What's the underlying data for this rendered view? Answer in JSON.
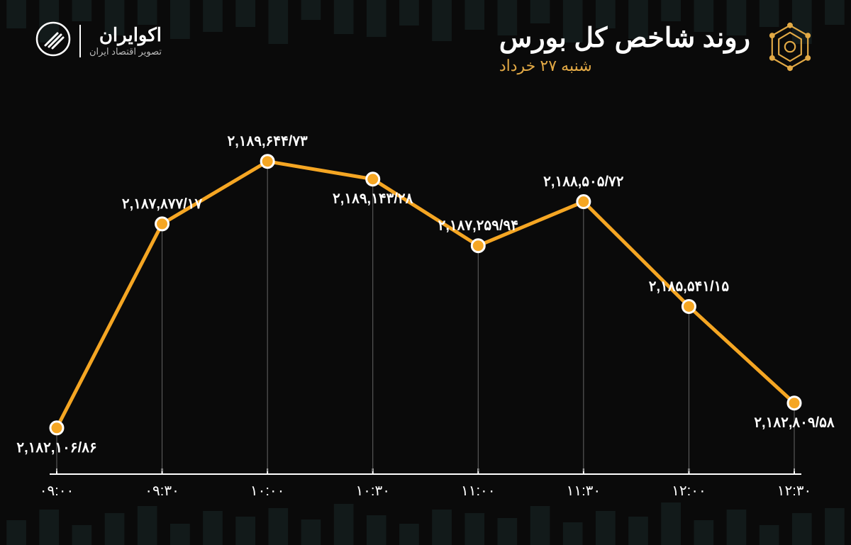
{
  "header": {
    "title": "روند شاخص کل بورس",
    "subtitle": "شنبه ۲۷ خرداد",
    "brand_main": "اکوایران",
    "brand_sub": "تصویر اقتصاد ایران"
  },
  "chart": {
    "type": "line",
    "background_color": "#0a0a0a",
    "line_color": "#f5a623",
    "line_width": 5,
    "marker_fill": "#f5a623",
    "marker_stroke": "#ffffff",
    "marker_radius": 9,
    "marker_stroke_width": 3,
    "axis_color": "#ffffff",
    "grid_tick_color": "#ffffff",
    "label_color": "#ffffff",
    "label_fontsize": 20,
    "data_label_fontsize": 20,
    "ylim": [
      2181000,
      2190000
    ],
    "x_labels": [
      "۰۹:۰۰",
      "۰۹:۳۰",
      "۱۰:۰۰",
      "۱۰:۳۰",
      "۱۱:۰۰",
      "۱۱:۳۰",
      "۱۲:۰۰",
      "۱۲:۳۰"
    ],
    "values": [
      2182106.86,
      2187877.17,
      2189644.73,
      2189143.28,
      2187259.94,
      2188505.72,
      2185541.15,
      2182809.58
    ],
    "value_labels": [
      "۲,۱۸۲,۱۰۶/۸۶",
      "۲,۱۸۷,۸۷۷/۱۷",
      "۲,۱۸۹,۶۴۴/۷۳",
      "۲,۱۸۹,۱۴۳/۲۸",
      "۲,۱۸۷,۲۵۹/۹۴",
      "۲,۱۸۸,۵۰۵/۷۲",
      "۲,۱۸۵,۵۴۱/۱۵",
      "۲,۱۸۲,۸۰۹/۵۸"
    ],
    "label_positions": [
      "below",
      "above",
      "above",
      "below",
      "above",
      "above",
      "above",
      "below"
    ],
    "bg_bars_top": {
      "color": "#1a2a2a",
      "heights": [
        40,
        60,
        30,
        50,
        35,
        55,
        45,
        38,
        62,
        28,
        48,
        52,
        36,
        58,
        42,
        50,
        33,
        60,
        40,
        55,
        30,
        45,
        50,
        38,
        62,
        35
      ]
    },
    "bg_bars_bottom": {
      "color": "#1a2a2a",
      "heights": [
        35,
        50,
        28,
        45,
        55,
        30,
        48,
        40,
        52,
        36,
        58,
        42,
        30,
        50,
        45,
        38,
        55,
        32,
        48,
        40,
        60,
        35,
        50,
        28,
        45,
        52
      ]
    }
  },
  "colors": {
    "accent": "#e2a945",
    "text": "#ffffff",
    "text_muted": "#bbbbbb"
  }
}
